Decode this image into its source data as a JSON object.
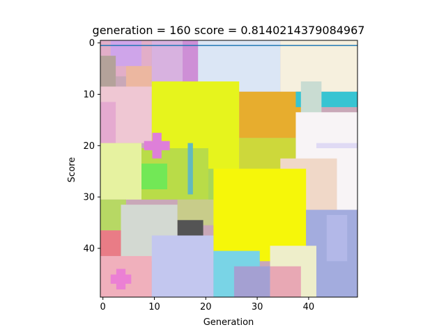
{
  "chart_data": {
    "type": "heatmap",
    "title": "generation = 160  score = 0.8140214379084967",
    "xlabel": "Generation",
    "ylabel": "Score",
    "xlim": [
      -0.5,
      49.5
    ],
    "ylim": [
      49.5,
      -0.5
    ],
    "x_ticks": [
      0,
      10,
      20,
      30,
      40
    ],
    "y_ticks": [
      0,
      10,
      20,
      30,
      40
    ],
    "grid": false,
    "legend": "none",
    "line_series": {
      "color": "#1f77b4",
      "points": [
        [
          -0.5,
          0.5
        ],
        [
          49.5,
          0.5
        ]
      ]
    },
    "image_background": "#c9a8b8",
    "image_layers": [
      {
        "x0": 0,
        "y0": 0,
        "x1": 10,
        "y1": 7,
        "color": "#e2aec8"
      },
      {
        "x0": 2,
        "y0": 0,
        "x1": 8,
        "y1": 5,
        "color": "#cfa5ea"
      },
      {
        "x0": 0,
        "y0": 3,
        "x1": 3,
        "y1": 10,
        "color": "#b4a29a"
      },
      {
        "x0": 5,
        "y0": 5,
        "x1": 10,
        "y1": 10,
        "color": "#ecb7a0"
      },
      {
        "x0": 10,
        "y0": 0,
        "x1": 17,
        "y1": 10,
        "color": "#d8b2e0"
      },
      {
        "x0": 16,
        "y0": 0,
        "x1": 20,
        "y1": 10,
        "color": "#ce8fd6"
      },
      {
        "x0": 19,
        "y0": 0,
        "x1": 35,
        "y1": 10,
        "color": "#dbe6f5"
      },
      {
        "x0": 35,
        "y0": 0,
        "x1": 50,
        "y1": 10,
        "color": "#f6f0de"
      },
      {
        "x0": 0,
        "y0": 9,
        "x1": 10,
        "y1": 20,
        "color": "#efc7d3"
      },
      {
        "x0": 0,
        "y0": 12,
        "x1": 3,
        "y1": 20,
        "color": "#e5aad0"
      },
      {
        "x0": 10,
        "y0": 8,
        "x1": 27,
        "y1": 25,
        "color": "#e6f41d"
      },
      {
        "x0": 27,
        "y0": 10,
        "x1": 39,
        "y1": 19,
        "color": "#e7ad2e"
      },
      {
        "x0": 38,
        "y0": 10,
        "x1": 50,
        "y1": 13,
        "color": "#37c4d2"
      },
      {
        "x0": 39,
        "y0": 8,
        "x1": 43,
        "y1": 16,
        "color": "#c9dcd2"
      },
      {
        "x0": 38,
        "y0": 14,
        "x1": 50,
        "y1": 33,
        "color": "#f8f4f6"
      },
      {
        "x0": 42,
        "y0": 20,
        "x1": 50,
        "y1": 21,
        "color": "#e0daf4"
      },
      {
        "x0": 27,
        "y0": 19,
        "x1": 38,
        "y1": 25,
        "color": "#cdd83b"
      },
      {
        "x0": 0,
        "y0": 20,
        "x1": 8,
        "y1": 31,
        "color": "#e6f2a0"
      },
      {
        "x0": 8,
        "y0": 21,
        "x1": 21,
        "y1": 31,
        "color": "#b9dc48"
      },
      {
        "x0": 8,
        "y0": 24,
        "x1": 13,
        "y1": 29,
        "color": "#72e856"
      },
      {
        "x0": 17,
        "y0": 20,
        "x1": 18,
        "y1": 30,
        "color": "#62b9bf"
      },
      {
        "x0": 21,
        "y0": 25,
        "x1": 26,
        "y1": 34,
        "color": "#a8d65a"
      },
      {
        "x0": 35,
        "y0": 23,
        "x1": 46,
        "y1": 33,
        "color": "#f0d8c8"
      },
      {
        "x0": 0,
        "y0": 31,
        "x1": 5,
        "y1": 38,
        "color": "#b7d864"
      },
      {
        "x0": 4,
        "y0": 32,
        "x1": 15,
        "y1": 43,
        "color": "#d3d9d2"
      },
      {
        "x0": 15,
        "y0": 31,
        "x1": 23,
        "y1": 36,
        "color": "#c8cc8a"
      },
      {
        "x0": 15,
        "y0": 35,
        "x1": 20,
        "y1": 40,
        "color": "#545454"
      },
      {
        "x0": 0,
        "y0": 37,
        "x1": 4,
        "y1": 42,
        "color": "#e97c86"
      },
      {
        "x0": 22,
        "y0": 25,
        "x1": 40,
        "y1": 43,
        "color": "#f6f709"
      },
      {
        "x0": 40,
        "y0": 33,
        "x1": 50,
        "y1": 50,
        "color": "#a3acde"
      },
      {
        "x0": 44,
        "y0": 34,
        "x1": 48,
        "y1": 43,
        "color": "#b3b8e8"
      },
      {
        "x0": 0,
        "y0": 42,
        "x1": 10,
        "y1": 50,
        "color": "#f0b0bc"
      },
      {
        "x0": 10,
        "y0": 38,
        "x1": 22,
        "y1": 50,
        "color": "#c3c7ef"
      },
      {
        "x0": 22,
        "y0": 41,
        "x1": 31,
        "y1": 50,
        "color": "#79d4e6"
      },
      {
        "x0": 26,
        "y0": 44,
        "x1": 34,
        "y1": 50,
        "color": "#a4a0d2"
      },
      {
        "x0": 33,
        "y0": 40,
        "x1": 42,
        "y1": 50,
        "color": "#eeeeca"
      },
      {
        "x0": 33,
        "y0": 44,
        "x1": 39,
        "y1": 50,
        "color": "#e8a8b4"
      }
    ],
    "image_crosses": [
      {
        "cx": 11,
        "cy": 20.5,
        "r": 2.5,
        "color": "#de7fd9"
      },
      {
        "cx": 4,
        "cy": 46.5,
        "r": 2,
        "color": "#eb80d4"
      }
    ]
  }
}
